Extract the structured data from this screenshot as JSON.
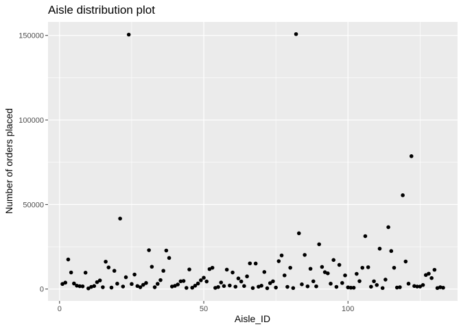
{
  "chart_data": {
    "type": "scatter",
    "title": "Aisle distribution plot",
    "xlabel": "Aisle_ID",
    "ylabel": "Number of orders placed",
    "xlim": [
      -4,
      138
    ],
    "ylim": [
      -7000,
      158000
    ],
    "x_ticks": [
      0,
      50,
      100
    ],
    "x_tick_labels": [
      "0",
      "50",
      "100"
    ],
    "y_ticks": [
      0,
      50000,
      100000,
      150000
    ],
    "y_tick_labels": [
      "0",
      "50000",
      "100000",
      "150000"
    ],
    "grid": true,
    "legend": "none",
    "colors": {
      "panel": "#ebebeb",
      "grid": "#ffffff",
      "point": "#000000"
    },
    "points": [
      [
        1,
        3000
      ],
      [
        2,
        3800
      ],
      [
        3,
        17500
      ],
      [
        4,
        9800
      ],
      [
        5,
        3300
      ],
      [
        6,
        2000
      ],
      [
        7,
        1700
      ],
      [
        8,
        1600
      ],
      [
        9,
        9700
      ],
      [
        10,
        400
      ],
      [
        11,
        1300
      ],
      [
        12,
        1800
      ],
      [
        13,
        4100
      ],
      [
        14,
        5100
      ],
      [
        15,
        1100
      ],
      [
        16,
        16200
      ],
      [
        17,
        12800
      ],
      [
        18,
        900
      ],
      [
        19,
        10800
      ],
      [
        20,
        3200
      ],
      [
        21,
        41700
      ],
      [
        22,
        1500
      ],
      [
        23,
        7000
      ],
      [
        24,
        150500
      ],
      [
        25,
        3000
      ],
      [
        26,
        8600
      ],
      [
        27,
        1800
      ],
      [
        28,
        1100
      ],
      [
        29,
        2500
      ],
      [
        30,
        3600
      ],
      [
        31,
        23000
      ],
      [
        32,
        13200
      ],
      [
        33,
        1100
      ],
      [
        34,
        3100
      ],
      [
        35,
        5300
      ],
      [
        36,
        10800
      ],
      [
        37,
        22800
      ],
      [
        38,
        18400
      ],
      [
        39,
        1500
      ],
      [
        40,
        1900
      ],
      [
        41,
        2700
      ],
      [
        42,
        4600
      ],
      [
        43,
        4800
      ],
      [
        44,
        700
      ],
      [
        45,
        11600
      ],
      [
        46,
        800
      ],
      [
        47,
        2000
      ],
      [
        48,
        3300
      ],
      [
        49,
        5200
      ],
      [
        50,
        6700
      ],
      [
        51,
        4500
      ],
      [
        52,
        11800
      ],
      [
        53,
        12600
      ],
      [
        54,
        700
      ],
      [
        55,
        1200
      ],
      [
        56,
        3900
      ],
      [
        57,
        1800
      ],
      [
        58,
        11500
      ],
      [
        59,
        2100
      ],
      [
        60,
        9800
      ],
      [
        61,
        1400
      ],
      [
        62,
        6300
      ],
      [
        63,
        4500
      ],
      [
        64,
        1800
      ],
      [
        65,
        7500
      ],
      [
        66,
        15200
      ],
      [
        67,
        600
      ],
      [
        68,
        15100
      ],
      [
        69,
        1400
      ],
      [
        70,
        2000
      ],
      [
        71,
        10100
      ],
      [
        72,
        500
      ],
      [
        73,
        3500
      ],
      [
        74,
        4600
      ],
      [
        75,
        900
      ],
      [
        76,
        16500
      ],
      [
        77,
        19900
      ],
      [
        78,
        8100
      ],
      [
        79,
        1300
      ],
      [
        80,
        12600
      ],
      [
        81,
        600
      ],
      [
        82,
        150800
      ],
      [
        83,
        33000
      ],
      [
        84,
        2800
      ],
      [
        85,
        20200
      ],
      [
        86,
        1600
      ],
      [
        87,
        12000
      ],
      [
        88,
        4600
      ],
      [
        89,
        1600
      ],
      [
        90,
        26500
      ],
      [
        91,
        13100
      ],
      [
        92,
        10000
      ],
      [
        93,
        9300
      ],
      [
        94,
        3200
      ],
      [
        95,
        17200
      ],
      [
        96,
        1300
      ],
      [
        97,
        14300
      ],
      [
        98,
        3600
      ],
      [
        99,
        8100
      ],
      [
        100,
        1000
      ],
      [
        101,
        800
      ],
      [
        102,
        800
      ],
      [
        103,
        9000
      ],
      [
        104,
        4700
      ],
      [
        105,
        12600
      ],
      [
        106,
        31300
      ],
      [
        107,
        12900
      ],
      [
        108,
        1400
      ],
      [
        109,
        4600
      ],
      [
        110,
        2400
      ],
      [
        111,
        23900
      ],
      [
        112,
        600
      ],
      [
        113,
        5600
      ],
      [
        114,
        36600
      ],
      [
        115,
        22500
      ],
      [
        116,
        12600
      ],
      [
        117,
        900
      ],
      [
        118,
        1100
      ],
      [
        119,
        55500
      ],
      [
        120,
        16300
      ],
      [
        121,
        3200
      ],
      [
        122,
        78600
      ],
      [
        123,
        1800
      ],
      [
        124,
        1500
      ],
      [
        125,
        1500
      ],
      [
        126,
        2400
      ],
      [
        127,
        8300
      ],
      [
        128,
        9100
      ],
      [
        129,
        6500
      ],
      [
        130,
        11400
      ],
      [
        131,
        600
      ],
      [
        132,
        1100
      ],
      [
        133,
        800
      ]
    ]
  }
}
